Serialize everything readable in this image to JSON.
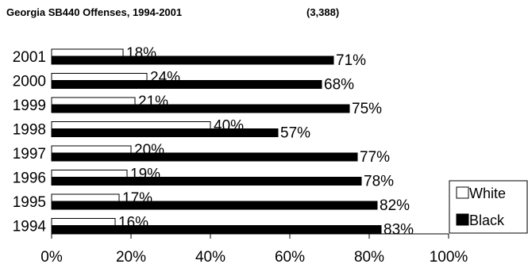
{
  "chart_data": {
    "type": "bar",
    "orientation": "horizontal",
    "title": "Georgia SB440 Offenses, 1994-2001",
    "total_label": "(3,388)",
    "categories": [
      "2001",
      "2000",
      "1999",
      "1998",
      "1997",
      "1996",
      "1995",
      "1994"
    ],
    "series": [
      {
        "name": "White",
        "color": "#ffffff",
        "values": [
          18,
          24,
          21,
          40,
          20,
          19,
          17,
          16
        ]
      },
      {
        "name": "Black",
        "color": "#000000",
        "values": [
          71,
          68,
          75,
          57,
          77,
          78,
          82,
          83
        ]
      }
    ],
    "value_suffix": "%",
    "xlim": [
      0,
      100
    ],
    "xticks": [
      "0%",
      "20%",
      "40%",
      "60%",
      "80%",
      "100%"
    ],
    "grid": false,
    "legend_position": "bottom-right"
  }
}
